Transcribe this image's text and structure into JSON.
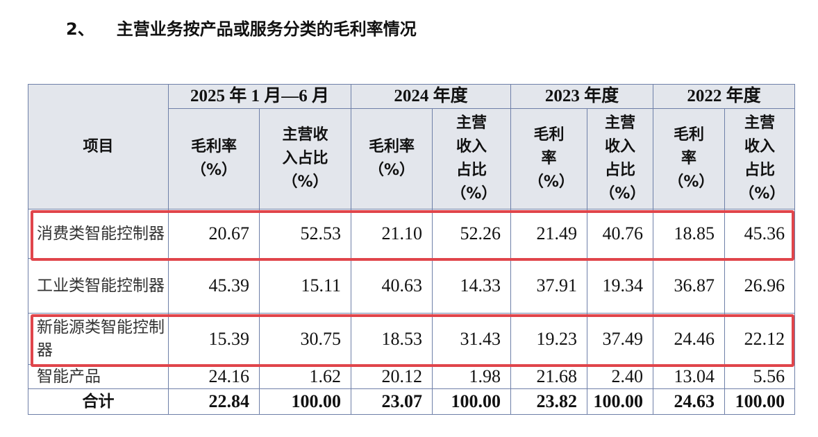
{
  "heading": {
    "number": "2、",
    "title": "主营业务按产品或服务分类的毛利率情况"
  },
  "table": {
    "item_header": "项目",
    "periods": [
      "2025 年 1 月—6 月",
      "2024 年度",
      "2023 年度",
      "2022 年度"
    ],
    "sub_headers": [
      {
        "gross": "毛利率（%）",
        "share": "主营收入占比（%）"
      },
      {
        "gross": "毛利率（%）",
        "share": "主营收入占比（%）"
      },
      {
        "gross": "毛利率（%）",
        "share": "主营收入占比（%）"
      },
      {
        "gross": "毛利率（%）",
        "share": "主营收入占比（%）"
      }
    ],
    "rows": [
      {
        "name": "消费类智能控制器",
        "values": [
          "20.67",
          "52.53",
          "21.10",
          "52.26",
          "21.49",
          "40.76",
          "18.85",
          "45.36"
        ],
        "highlighted": true
      },
      {
        "name": "工业类智能控制器",
        "values": [
          "45.39",
          "15.11",
          "40.63",
          "14.33",
          "37.91",
          "19.34",
          "36.87",
          "26.96"
        ],
        "highlighted": false
      },
      {
        "name": "新能源类智能控制器",
        "values": [
          "15.39",
          "30.75",
          "18.53",
          "31.43",
          "19.23",
          "37.49",
          "24.46",
          "22.12"
        ],
        "highlighted": true
      },
      {
        "name": "智能产品",
        "values": [
          "24.16",
          "1.62",
          "20.12",
          "1.98",
          "21.68",
          "2.40",
          "13.04",
          "5.56"
        ],
        "highlighted": false
      }
    ],
    "total": {
      "name": "合计",
      "values": [
        "22.84",
        "100.00",
        "23.07",
        "100.00",
        "23.82",
        "100.00",
        "24.63",
        "100.00"
      ]
    }
  },
  "colors": {
    "highlight_box": "#e0454b",
    "header_bg": "#e3e6ec",
    "border": "#6e7fa8"
  }
}
